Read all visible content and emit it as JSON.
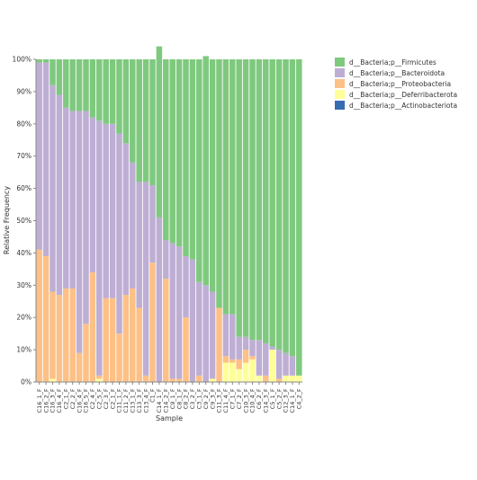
{
  "chart_data": {
    "type": "bar",
    "stacked": true,
    "title": "",
    "xlabel": "Sample",
    "ylabel": "Relative Frequency",
    "ylim": [
      0,
      100
    ],
    "yticks": [
      "0%",
      "10%",
      "20%",
      "30%",
      "40%",
      "50%",
      "60%",
      "70%",
      "80%",
      "90%",
      "100%"
    ],
    "grid": false,
    "legend_position": "top-right",
    "categories": [
      "C16_1_F",
      "C16_2_F",
      "C16_3_F",
      "C16_4_F",
      "C2_1_F",
      "C2_2_F",
      "C16_4_F",
      "C16_5_F",
      "C2_4_F",
      "C2_5_F",
      "C2_3_F",
      "C2_1_F",
      "C11_1_F",
      "C11_2_F",
      "C13_1_F",
      "C13_3_F",
      "C13_4_F",
      "C1_F",
      "C14_1_F",
      "C14_2_F",
      "C9_1_F",
      "C8_1_F",
      "C8_2_F",
      "C3_2_F",
      "C3_1_F",
      "C9_2_F",
      "C9_3_F",
      "C11_3_F",
      "C11_4_F",
      "C7_1_F",
      "C7_2_F",
      "C10_3_F",
      "C10_4_F",
      "C6_2_F",
      "C14_3_F",
      "C5_1_F",
      "C5_2_F",
      "C12_3_F",
      "C14_1_F",
      "C4_2_F"
    ],
    "series": [
      {
        "name": "d__Bacteria;p__Firmicutes",
        "color": "#7fc97f",
        "values": [
          1,
          1,
          8,
          11,
          15,
          16,
          16,
          16,
          18,
          19,
          20,
          20,
          23,
          26,
          32,
          38,
          38,
          39,
          53,
          56,
          57,
          58,
          61,
          62,
          69,
          71,
          72,
          77,
          79,
          79,
          86,
          86,
          87,
          87,
          88,
          89,
          90,
          91,
          92,
          98
        ]
      },
      {
        "name": "d__Bacteria;p__Bacteroidota",
        "color": "#beaed4",
        "values": [
          58,
          60,
          64,
          62,
          56,
          55,
          75,
          66,
          48,
          79,
          54,
          54,
          62,
          47,
          39,
          39,
          60,
          24,
          51,
          12,
          42,
          41,
          19,
          38,
          29,
          30,
          27,
          0,
          13,
          14,
          7,
          4,
          5,
          11,
          10,
          1,
          9,
          7,
          6,
          0
        ]
      },
      {
        "name": "d__Bacteria;p__Proteobacteria",
        "color": "#fdc086",
        "values": [
          41,
          39,
          27,
          27,
          29,
          29,
          9,
          18,
          34,
          1,
          26,
          26,
          15,
          27,
          29,
          23,
          2,
          37,
          0,
          32,
          1,
          1,
          20,
          0,
          2,
          0,
          0,
          23,
          2,
          1,
          3,
          4,
          1,
          0,
          2,
          0,
          1,
          0,
          0,
          0
        ]
      },
      {
        "name": "d__Bacteria;p__Deferribacterota",
        "color": "#ffff99",
        "values": [
          0,
          0,
          1,
          0,
          0,
          0,
          0,
          0,
          0,
          1,
          0,
          0,
          0,
          0,
          0,
          0,
          0,
          0,
          0,
          0,
          0,
          0,
          0,
          0,
          0,
          0,
          1,
          0,
          6,
          6,
          4,
          6,
          7,
          2,
          0,
          10,
          0,
          2,
          2,
          2
        ]
      },
      {
        "name": "d__Bacteria;p__Actinobacteriota",
        "color": "#386cb0",
        "values": [
          0,
          0,
          0,
          0,
          0,
          0,
          0,
          0,
          0,
          0,
          0,
          0,
          0,
          0,
          0,
          0,
          0,
          0,
          0,
          0,
          0,
          0,
          0,
          0,
          0,
          0,
          0,
          0,
          0,
          0,
          0,
          0,
          0,
          0,
          0,
          0,
          0,
          0,
          0,
          0
        ]
      }
    ]
  }
}
